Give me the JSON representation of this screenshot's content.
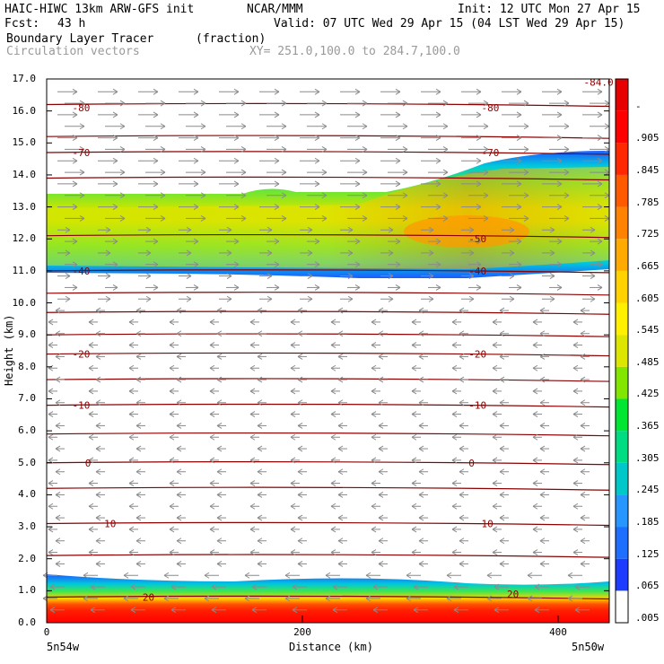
{
  "header": {
    "model": "HAIC-HIWC 13km ARW-GFS init",
    "org": "NCAR/MMM",
    "init": "Init: 12 UTC Mon 27 Apr 15",
    "fcst_label": "Fcst:",
    "fcst_value": "43 h",
    "valid": "Valid: 07 UTC Wed 29 Apr 15 (04 LST Wed 29 Apr 15)",
    "field": "Boundary Layer Tracer",
    "units": "(fraction)",
    "vectors": "Circulation vectors",
    "xsect": "XY= 251.0,100.0 to 284.7,100.0"
  },
  "chart_data": {
    "type": "heatmap",
    "xlabel": "Distance (km)",
    "ylabel": "Height (km)",
    "xlim": [
      0,
      440
    ],
    "ylim": [
      0,
      17
    ],
    "x_ticks": [
      "0",
      "200",
      "400"
    ],
    "x_tick_values": [
      0,
      200,
      400
    ],
    "y_ticks": [
      "0.0",
      "1.0",
      "2.0",
      "3.0",
      "4.0",
      "5.0",
      "6.0",
      "7.0",
      "8.0",
      "9.0",
      "10.0",
      "11.0",
      "12.0",
      "13.0",
      "14.0",
      "15.0",
      "16.0",
      "17.0"
    ],
    "endpoint_left": "5n54w",
    "endpoint_right": "5n50w",
    "colorbar_labels": [
      ".005",
      ".065",
      ".125",
      ".185",
      ".245",
      ".305",
      ".365",
      ".425",
      ".485",
      ".545",
      ".605",
      ".665",
      ".725",
      ".785",
      ".845",
      ".905",
      "-"
    ],
    "colorbar_colors": [
      "#ffffff",
      "#1e3cff",
      "#1e6eff",
      "#2896ff",
      "#00c8c8",
      "#00dc82",
      "#00e632",
      "#82e600",
      "#dce600",
      "#fff000",
      "#ffd200",
      "#ffaa00",
      "#ff8200",
      "#ff5a00",
      "#ff2800",
      "#ff0000",
      "#e60000"
    ],
    "isotherm_labels": [
      {
        "text": "-80",
        "x": 20,
        "y": 16.1
      },
      {
        "text": "-80",
        "x": 340,
        "y": 16.1
      },
      {
        "text": "-70",
        "x": 20,
        "y": 14.7
      },
      {
        "text": "-70",
        "x": 340,
        "y": 14.7
      },
      {
        "text": "-50",
        "x": 330,
        "y": 12.0
      },
      {
        "text": "-40",
        "x": 330,
        "y": 11.0
      },
      {
        "text": "-40",
        "x": 20,
        "y": 11.0
      },
      {
        "text": "-20",
        "x": 20,
        "y": 8.4
      },
      {
        "text": "-20",
        "x": 330,
        "y": 8.4
      },
      {
        "text": "-10",
        "x": 20,
        "y": 6.8
      },
      {
        "text": "-10",
        "x": 330,
        "y": 6.8
      },
      {
        "text": "0",
        "x": 30,
        "y": 5.0
      },
      {
        "text": "0",
        "x": 330,
        "y": 5.0
      },
      {
        "text": "10",
        "x": 45,
        "y": 3.1
      },
      {
        "text": "10",
        "x": 340,
        "y": 3.1
      },
      {
        "text": "20",
        "x": 75,
        "y": 0.8
      },
      {
        "text": "20",
        "x": 360,
        "y": 0.9
      },
      {
        "text": "-84.0",
        "x": 420,
        "y": 16.9
      }
    ]
  }
}
